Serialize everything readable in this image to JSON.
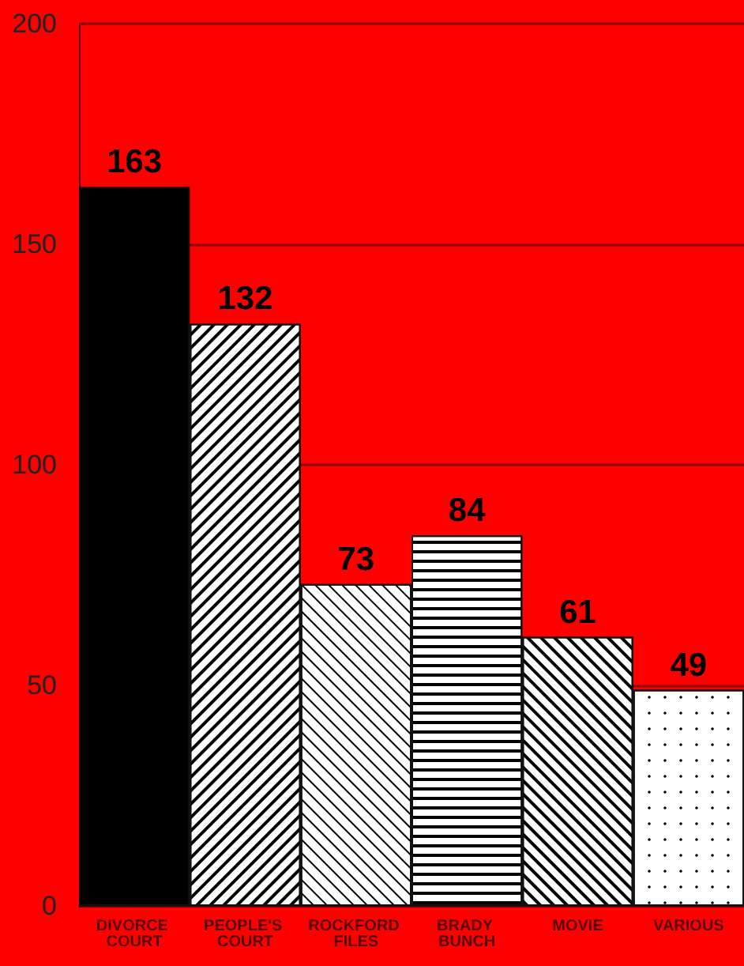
{
  "chart_data": {
    "type": "bar",
    "categories": [
      "DIVORCE COURT",
      "PEOPLE'S COURT",
      "ROCKFORD FILES",
      "BRADY BUNCH",
      "MOVIE",
      "VARIOUS"
    ],
    "values": [
      163,
      132,
      73,
      84,
      61,
      49
    ],
    "colors": [
      "#000000",
      "#ffffff",
      "#ffffff",
      "#ffffff",
      "#ffffff",
      "#ffffff"
    ],
    "ylim": [
      0,
      200
    ],
    "yticks": [
      0,
      50,
      100,
      150,
      200
    ],
    "grid": "y",
    "data_labels": true
  }
}
